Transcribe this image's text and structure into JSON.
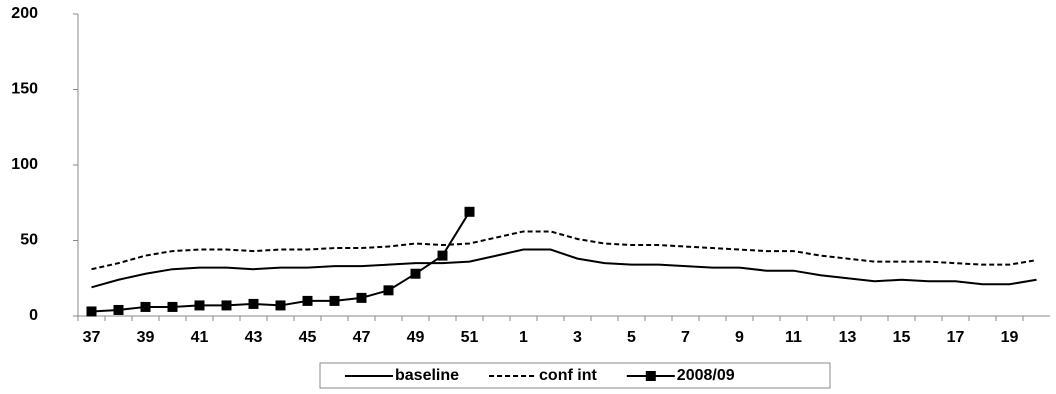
{
  "chart_data": {
    "type": "line",
    "categories": [
      "37",
      null,
      "39",
      null,
      "41",
      null,
      "43",
      null,
      "45",
      null,
      "47",
      null,
      "49",
      null,
      "51",
      null,
      "1",
      null,
      "3",
      null,
      "5",
      null,
      "7",
      null,
      "9",
      null,
      "11",
      null,
      "13",
      null,
      "15",
      null,
      "17",
      null,
      "19",
      null
    ],
    "series": [
      {
        "name": "baseline",
        "color": "#000000",
        "dashed": false,
        "marker": null,
        "values": [
          19,
          24,
          28,
          31,
          32,
          32,
          31,
          32,
          32,
          33,
          33,
          34,
          35,
          35,
          36,
          40,
          44,
          44,
          38,
          35,
          34,
          34,
          33,
          32,
          32,
          30,
          30,
          27,
          25,
          23,
          24,
          23,
          23,
          21,
          21,
          24
        ]
      },
      {
        "name": "conf int",
        "color": "#000000",
        "dashed": true,
        "marker": null,
        "values": [
          31,
          35,
          40,
          43,
          44,
          44,
          43,
          44,
          44,
          45,
          45,
          46,
          48,
          47,
          48,
          52,
          56,
          56,
          51,
          48,
          47,
          47,
          46,
          45,
          44,
          43,
          43,
          40,
          38,
          36,
          36,
          36,
          35,
          34,
          34,
          37
        ]
      },
      {
        "name": "2008/09",
        "color": "#000000",
        "dashed": false,
        "marker": "square",
        "values": [
          3,
          4,
          6,
          6,
          7,
          7,
          8,
          7,
          10,
          10,
          12,
          17,
          28,
          40,
          69,
          null,
          null,
          null,
          null,
          null,
          null,
          null,
          null,
          null,
          null,
          null,
          null,
          null,
          null,
          null,
          null,
          null,
          null,
          null,
          null,
          null
        ]
      }
    ],
    "ylim": [
      0,
      200
    ],
    "yticks": [
      0,
      50,
      100,
      150,
      200
    ],
    "grid": false,
    "legend": "bottom"
  }
}
